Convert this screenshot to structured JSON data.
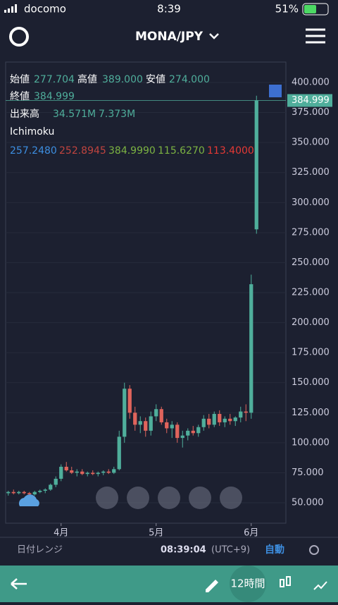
{
  "status_bar": {
    "carrier": "docomo",
    "time": "8:39",
    "battery": "51%"
  },
  "header": {
    "pair": "MONA/JPY"
  },
  "legend": {
    "open_label": "始値",
    "open": "277.704",
    "high_label": "高値",
    "high": "389.000",
    "low_label": "安値",
    "low": "274.000",
    "close_label": "終値",
    "close": "384.999",
    "volume_label": "出来高",
    "volume": [
      "34.571M",
      "7.373M"
    ],
    "indicator": "Ichimoku",
    "indicator_values": [
      "257.2480",
      "252.8945",
      "384.9990",
      "115.6270",
      "113.4000"
    ]
  },
  "chart_data": {
    "type": "candlestick",
    "categories": [
      null,
      null,
      null,
      null,
      null,
      null,
      null,
      null,
      null,
      null,
      "4月",
      null,
      null,
      null,
      null,
      null,
      null,
      null,
      null,
      null,
      null,
      null,
      null,
      null,
      null,
      null,
      null,
      null,
      "5月",
      null,
      null,
      null,
      null,
      null,
      null,
      null,
      null,
      null,
      null,
      null,
      null,
      null,
      null,
      null,
      null,
      null,
      "6月",
      null
    ],
    "open": [
      58,
      59,
      58,
      59,
      58,
      57,
      59,
      60,
      61,
      65,
      70,
      80,
      77,
      75,
      76,
      74,
      75,
      74,
      75,
      76,
      75,
      78,
      105,
      145,
      125,
      115,
      118,
      110,
      122,
      128,
      117,
      112,
      115,
      104,
      106,
      110,
      108,
      113,
      120,
      115,
      124,
      117,
      120,
      118,
      121,
      126,
      125,
      277.704
    ],
    "high": [
      60,
      61,
      60,
      60,
      59,
      60,
      61,
      62,
      66,
      72,
      82,
      84,
      80,
      78,
      78,
      76,
      77,
      76,
      77,
      78,
      80,
      110,
      150,
      148,
      130,
      122,
      121,
      126,
      132,
      130,
      120,
      118,
      117,
      110,
      112,
      114,
      115,
      123,
      124,
      126,
      127,
      122,
      124,
      122,
      130,
      132,
      240,
      389
    ],
    "low": [
      56,
      57,
      57,
      57,
      56,
      56,
      58,
      58,
      60,
      63,
      68,
      76,
      74,
      72,
      73,
      72,
      73,
      72,
      73,
      74,
      74,
      77,
      100,
      120,
      110,
      108,
      105,
      106,
      118,
      115,
      108,
      104,
      100,
      96,
      102,
      106,
      105,
      110,
      112,
      113,
      114,
      113,
      115,
      114,
      117,
      118,
      120,
      274
    ],
    "close": [
      59,
      58,
      59,
      58,
      57,
      59,
      60,
      61,
      65,
      70,
      80,
      77,
      75,
      76,
      74,
      75,
      74,
      75,
      76,
      75,
      78,
      105,
      145,
      125,
      115,
      118,
      110,
      122,
      128,
      117,
      112,
      115,
      104,
      106,
      110,
      108,
      113,
      120,
      115,
      124,
      117,
      120,
      118,
      121,
      126,
      125,
      232,
      384.999
    ],
    "up_color": "#4fae9b",
    "down_color": "#e0645c",
    "ylim": [
      33,
      417
    ],
    "yticks": [
      {
        "value": 50,
        "label": "50.000"
      },
      {
        "value": 75,
        "label": "75.000"
      },
      {
        "value": 100,
        "label": "100.000"
      },
      {
        "value": 125,
        "label": "125.000"
      },
      {
        "value": 150,
        "label": "150.000"
      },
      {
        "value": 175,
        "label": "175.000"
      },
      {
        "value": 200,
        "label": "200.000"
      },
      {
        "value": 225,
        "label": "225.000"
      },
      {
        "value": 250,
        "label": "250.000"
      },
      {
        "value": 275,
        "label": "275.000"
      },
      {
        "value": 300,
        "label": "300.000"
      },
      {
        "value": 325,
        "label": "325.000"
      },
      {
        "value": 350,
        "label": "350.000"
      },
      {
        "value": 375,
        "label": "375.000"
      },
      {
        "value": 400,
        "label": "400.000"
      }
    ]
  },
  "footer": {
    "range_label": "日付レンジ",
    "time": "08:39:04",
    "timezone": "(UTC+9)",
    "auto": "自動"
  },
  "toolbar": {
    "interval": "12時間"
  }
}
